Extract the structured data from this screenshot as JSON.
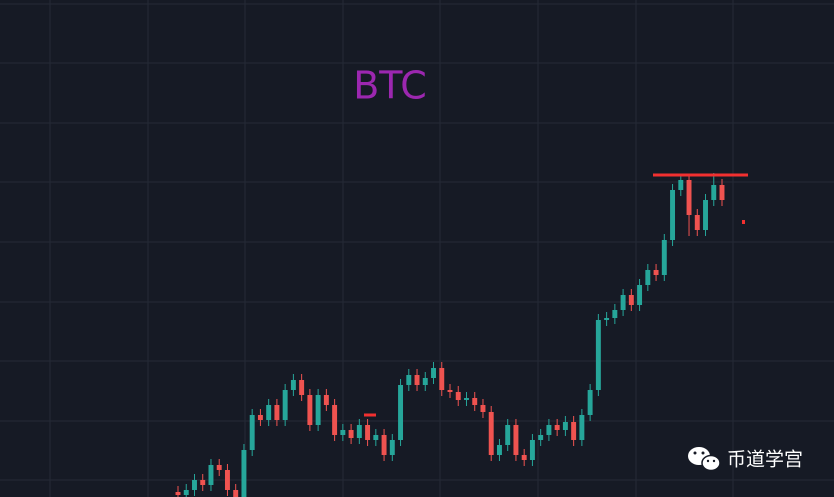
{
  "chart_data": {
    "type": "candlestick",
    "title": "BTC",
    "open": [
      5,
      2,
      7,
      17,
      12,
      32,
      27,
      7,
      0,
      47,
      82,
      77,
      92,
      77,
      107,
      117,
      102,
      72,
      102,
      92,
      62,
      67,
      59,
      72,
      57,
      62,
      42,
      57,
      112,
      122,
      112,
      119,
      129,
      107,
      105,
      97,
      99,
      92,
      85,
      42,
      52,
      72,
      42,
      37,
      57,
      62,
      72,
      67,
      75,
      57,
      82,
      107,
      177,
      179,
      187,
      202,
      192,
      212,
      227,
      222,
      257,
      307,
      317,
      282,
      267,
      297,
      312
    ],
    "high": [
      11,
      13,
      23,
      23,
      38,
      38,
      33,
      13,
      53,
      88,
      88,
      98,
      98,
      113,
      123,
      123,
      108,
      108,
      108,
      98,
      73,
      73,
      78,
      78,
      68,
      68,
      63,
      118,
      128,
      128,
      125,
      135,
      135,
      113,
      111,
      105,
      105,
      98,
      91,
      58,
      78,
      78,
      48,
      63,
      68,
      78,
      78,
      81,
      81,
      88,
      113,
      183,
      185,
      193,
      208,
      208,
      218,
      233,
      233,
      263,
      313,
      323,
      323,
      288,
      303,
      324,
      318
    ],
    "low": [
      -4,
      -4,
      1,
      6,
      6,
      21,
      1,
      -6,
      -6,
      41,
      71,
      71,
      71,
      71,
      101,
      96,
      66,
      66,
      86,
      56,
      56,
      53,
      53,
      51,
      51,
      36,
      36,
      51,
      106,
      106,
      106,
      113,
      101,
      99,
      91,
      91,
      86,
      79,
      36,
      36,
      46,
      36,
      31,
      31,
      51,
      56,
      61,
      61,
      51,
      51,
      76,
      101,
      171,
      173,
      181,
      186,
      186,
      206,
      216,
      216,
      251,
      301,
      261,
      261,
      261,
      291,
      291
    ],
    "close": [
      2,
      7,
      17,
      12,
      32,
      27,
      7,
      0,
      47,
      82,
      77,
      92,
      77,
      107,
      117,
      102,
      72,
      102,
      92,
      62,
      67,
      59,
      72,
      57,
      62,
      42,
      57,
      112,
      122,
      112,
      119,
      129,
      107,
      105,
      97,
      99,
      92,
      85,
      42,
      52,
      72,
      42,
      37,
      57,
      62,
      72,
      67,
      75,
      57,
      82,
      107,
      177,
      179,
      187,
      202,
      192,
      212,
      227,
      222,
      257,
      307,
      317,
      282,
      267,
      297,
      312,
      297
    ],
    "ylim": [
      0,
      497
    ],
    "up_color": "#26a69a",
    "down_color": "#ef5350",
    "title_color": "#9c27b0"
  },
  "watermark": "币道学宫"
}
